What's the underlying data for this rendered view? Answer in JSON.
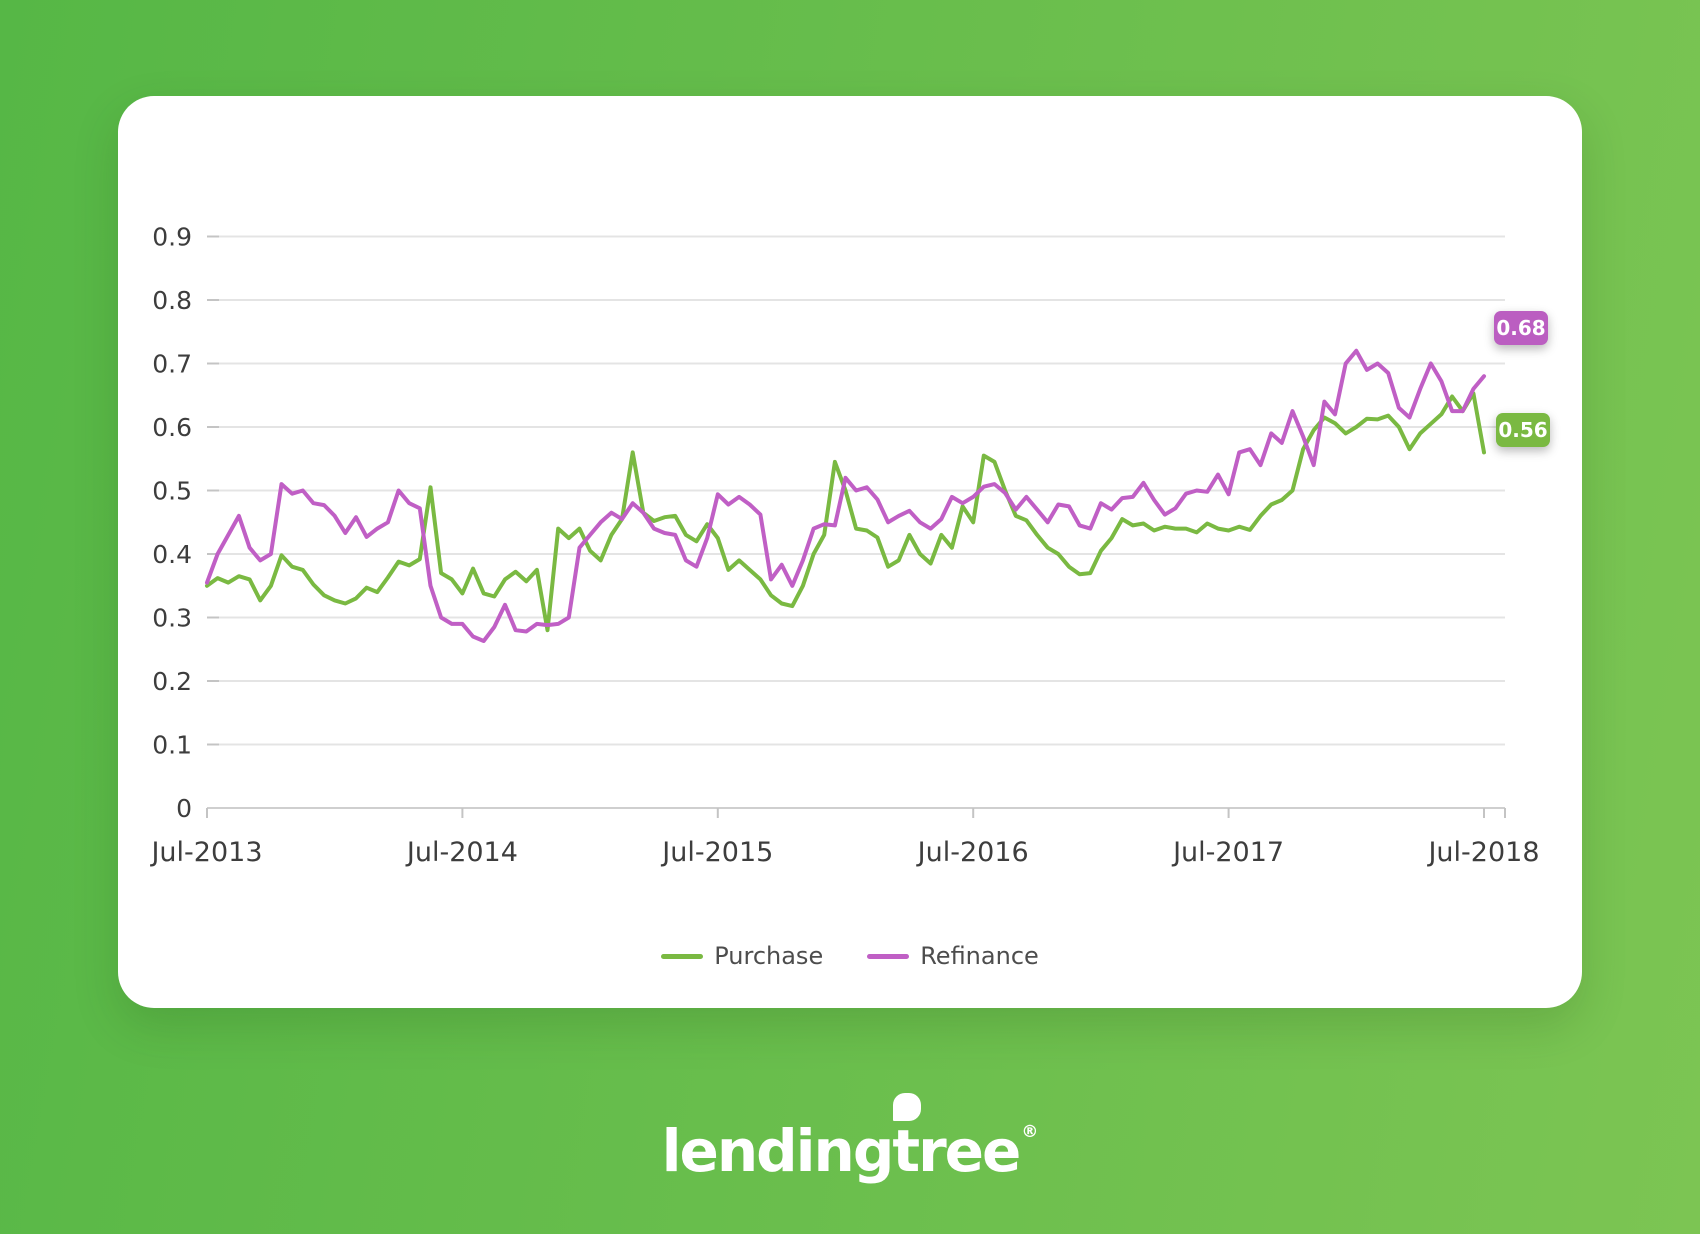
{
  "background": {
    "gradient_left": "#56b746",
    "gradient_right": "#7cc553"
  },
  "chart_data": {
    "type": "line",
    "title": "",
    "xlabel": "",
    "ylabel": "",
    "x_unit": "months since Jul-2013 (weekly series, sampled every 0.5 month)",
    "x_start": 0,
    "x_step": 0.5,
    "ylim": [
      0,
      0.9
    ],
    "grid": true,
    "x_axis": {
      "tick_labels": [
        "Jul-2013",
        "Jul-2014",
        "Jul-2015",
        "Jul-2016",
        "Jul-2017",
        "Jul-2018"
      ],
      "months_per_tick": 12
    },
    "y_axis": {
      "tick_labels": [
        "0",
        "0.1",
        "0.2",
        "0.3",
        "0.4",
        "0.5",
        "0.6",
        "0.7",
        "0.8",
        "0.9"
      ],
      "step": 0.1
    },
    "legend": {
      "position": "bottom",
      "entries": [
        {
          "label": "Purchase",
          "color": "#7ab942"
        },
        {
          "label": "Refinance",
          "color": "#c05fc5"
        }
      ]
    },
    "end_labels": [
      {
        "series": "Refinance",
        "text": "0.68",
        "color": "#bb5ec1"
      },
      {
        "series": "Purchase",
        "text": "0.56",
        "color": "#7ab942"
      }
    ],
    "series": [
      {
        "name": "Purchase",
        "color": "#7ab942",
        "final_value": 0.56,
        "values": [
          0.35,
          0.362,
          0.355,
          0.365,
          0.36,
          0.327,
          0.35,
          0.398,
          0.38,
          0.375,
          0.352,
          0.335,
          0.327,
          0.322,
          0.33,
          0.347,
          0.34,
          0.363,
          0.388,
          0.382,
          0.392,
          0.505,
          0.37,
          0.36,
          0.338,
          0.377,
          0.338,
          0.333,
          0.36,
          0.372,
          0.357,
          0.375,
          0.28,
          0.44,
          0.425,
          0.44,
          0.405,
          0.39,
          0.43,
          0.455,
          0.56,
          0.465,
          0.452,
          0.458,
          0.46,
          0.43,
          0.42,
          0.447,
          0.425,
          0.375,
          0.39,
          0.375,
          0.36,
          0.335,
          0.322,
          0.318,
          0.35,
          0.4,
          0.43,
          0.545,
          0.5,
          0.44,
          0.437,
          0.426,
          0.38,
          0.39,
          0.43,
          0.4,
          0.385,
          0.43,
          0.41,
          0.475,
          0.45,
          0.555,
          0.545,
          0.5,
          0.46,
          0.453,
          0.43,
          0.41,
          0.4,
          0.38,
          0.368,
          0.37,
          0.405,
          0.425,
          0.455,
          0.445,
          0.448,
          0.437,
          0.443,
          0.44,
          0.44,
          0.434,
          0.448,
          0.44,
          0.437,
          0.443,
          0.438,
          0.46,
          0.478,
          0.485,
          0.5,
          0.565,
          0.595,
          0.615,
          0.606,
          0.59,
          0.6,
          0.613,
          0.612,
          0.618,
          0.6,
          0.565,
          0.59,
          0.605,
          0.62,
          0.648,
          0.625,
          0.653,
          0.56
        ]
      },
      {
        "name": "Refinance",
        "color": "#c05fc5",
        "final_value": 0.68,
        "values": [
          0.355,
          0.4,
          0.43,
          0.46,
          0.41,
          0.39,
          0.4,
          0.51,
          0.495,
          0.5,
          0.48,
          0.477,
          0.46,
          0.433,
          0.458,
          0.427,
          0.44,
          0.45,
          0.5,
          0.48,
          0.472,
          0.35,
          0.3,
          0.29,
          0.29,
          0.27,
          0.263,
          0.285,
          0.32,
          0.28,
          0.278,
          0.29,
          0.288,
          0.29,
          0.3,
          0.41,
          0.43,
          0.45,
          0.465,
          0.455,
          0.48,
          0.465,
          0.44,
          0.433,
          0.43,
          0.39,
          0.38,
          0.425,
          0.494,
          0.478,
          0.49,
          0.478,
          0.462,
          0.36,
          0.383,
          0.35,
          0.39,
          0.44,
          0.447,
          0.445,
          0.52,
          0.5,
          0.505,
          0.486,
          0.45,
          0.46,
          0.468,
          0.45,
          0.44,
          0.455,
          0.49,
          0.48,
          0.49,
          0.506,
          0.51,
          0.496,
          0.47,
          0.49,
          0.47,
          0.45,
          0.478,
          0.475,
          0.445,
          0.44,
          0.48,
          0.47,
          0.488,
          0.49,
          0.512,
          0.485,
          0.462,
          0.472,
          0.495,
          0.5,
          0.498,
          0.525,
          0.494,
          0.56,
          0.565,
          0.54,
          0.59,
          0.575,
          0.625,
          0.585,
          0.54,
          0.64,
          0.62,
          0.7,
          0.72,
          0.69,
          0.7,
          0.685,
          0.63,
          0.615,
          0.66,
          0.7,
          0.672,
          0.625,
          0.625,
          0.66,
          0.68
        ]
      }
    ]
  },
  "logo": {
    "text_before_leaf": "lending",
    "leaf_letter": "t",
    "text_after_leaf": "ree",
    "registered_mark": "®"
  }
}
